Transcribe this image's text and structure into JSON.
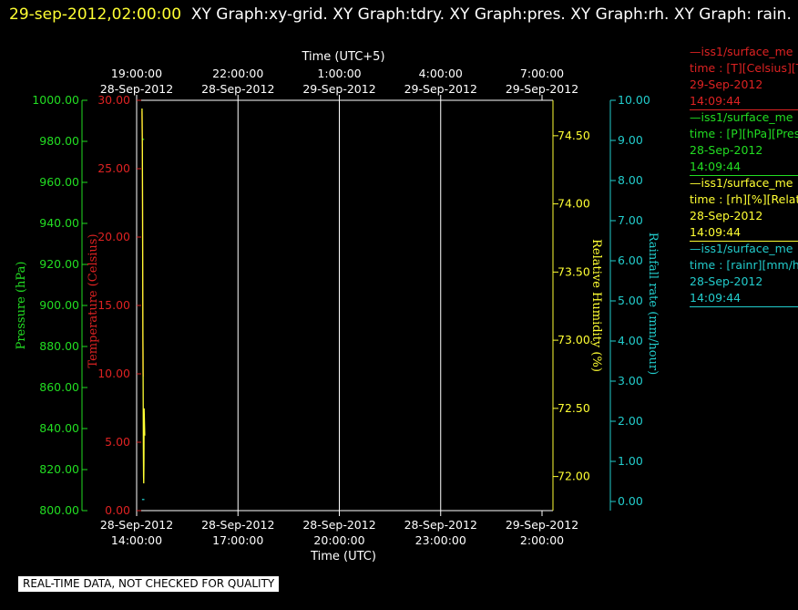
{
  "header": {
    "timestamp": "29-sep-2012,02:00:00",
    "title": "XY Graph:xy-grid.  XY Graph:tdry.  XY Graph:pres.  XY Graph:rh.  XY Graph: rain."
  },
  "colors": {
    "background": "#000000",
    "pressure": "#22dd22",
    "temperature": "#dd2222",
    "humidity": "#ffff33",
    "rain": "#22cccc",
    "grid": "#ffffff"
  },
  "legend": [
    {
      "line1": "—iss1/surface_me",
      "line2": "time : [T][Celsius][T",
      "line3": "29-Sep-2012",
      "line4": "14:09:44",
      "color": "#dd2222"
    },
    {
      "line1": "—iss1/surface_me",
      "line2": "time : [P][hPa][Pres",
      "line3": "28-Sep-2012",
      "line4": "14:09:44",
      "color": "#22dd22"
    },
    {
      "line1": "—iss1/surface_me",
      "line2": "time : [rh][%][Relati",
      "line3": "28-Sep-2012",
      "line4": "14:09:44",
      "color": "#ffff33"
    },
    {
      "line1": "—iss1/surface_me",
      "line2": "time : [rainr][mm/ho",
      "line3": "28-Sep-2012",
      "line4": "14:09:44",
      "color": "#22cccc"
    }
  ],
  "banner": "REAL-TIME DATA, NOT CHECKED FOR QUALITY",
  "chart_data": {
    "type": "line",
    "top_axis": {
      "title": "Time (UTC+5)",
      "ticks": [
        {
          "time": "19:00:00",
          "date": "28-Sep-2012"
        },
        {
          "time": "22:00:00",
          "date": "28-Sep-2012"
        },
        {
          "time": "1:00:00",
          "date": "29-Sep-2012"
        },
        {
          "time": "4:00:00",
          "date": "29-Sep-2012"
        },
        {
          "time": "7:00:00",
          "date": "29-Sep-2012"
        }
      ]
    },
    "bottom_axis": {
      "title": "Time (UTC)",
      "ticks": [
        {
          "date": "28-Sep-2012",
          "time": "14:00:00"
        },
        {
          "date": "28-Sep-2012",
          "time": "17:00:00"
        },
        {
          "date": "28-Sep-2012",
          "time": "20:00:00"
        },
        {
          "date": "28-Sep-2012",
          "time": "23:00:00"
        },
        {
          "date": "29-Sep-2012",
          "time": "2:00:00"
        }
      ],
      "range_hours": [
        0,
        12
      ]
    },
    "pressure_axis": {
      "label": "Pressure (hPa)",
      "min": 800,
      "max": 1000,
      "ticks": [
        "1000.00",
        "980.00",
        "960.00",
        "940.00",
        "920.00",
        "900.00",
        "880.00",
        "860.00",
        "840.00",
        "820.00",
        "800.00"
      ]
    },
    "temperature_axis": {
      "label": "Temperature (Celsius)",
      "min": 0,
      "max": 30,
      "ticks": [
        "30.00",
        "25.00",
        "20.00",
        "15.00",
        "10.00",
        "5.00",
        "0.00"
      ]
    },
    "humidity_axis": {
      "label": "Relative Humidity (%)",
      "min": 71.75,
      "max": 74.76,
      "ticks": [
        "74.50",
        "74.00",
        "73.50",
        "73.00",
        "72.50",
        "72.00"
      ]
    },
    "rain_axis": {
      "label": "Rainfall rate (mm/hour)",
      "min": 0,
      "max": 10,
      "ticks": [
        "10.00",
        "9.00",
        "8.00",
        "7.00",
        "6.00",
        "5.00",
        "4.00",
        "3.00",
        "2.00",
        "1.00",
        "0.00"
      ]
    },
    "series": [
      {
        "name": "temperature",
        "axis": "temperature",
        "color": "#dd2222",
        "points": [
          [
            0.16,
            29.2
          ],
          [
            0.17,
            26.0
          ],
          [
            0.175,
            22.0
          ],
          [
            0.18,
            17.0
          ],
          [
            0.185,
            12.0
          ],
          [
            0.19,
            10.2
          ],
          [
            0.195,
            9.8
          ]
        ]
      },
      {
        "name": "pressure",
        "axis": "pressure",
        "color": "#22dd22",
        "points": [
          [
            0.16,
            981.0
          ],
          [
            0.18,
            981.0
          ],
          [
            0.22,
            981.0
          ]
        ]
      },
      {
        "name": "humidity",
        "axis": "humidity",
        "color": "#ffff33",
        "points": [
          [
            0.16,
            74.7
          ],
          [
            0.17,
            74.4
          ],
          [
            0.175,
            74.0
          ],
          [
            0.18,
            73.4
          ],
          [
            0.185,
            73.0
          ],
          [
            0.19,
            72.9
          ],
          [
            0.2,
            72.2
          ],
          [
            0.205,
            72.0
          ],
          [
            0.21,
            71.95
          ],
          [
            0.215,
            72.1
          ],
          [
            0.22,
            72.5
          ],
          [
            0.24,
            72.3
          ]
        ]
      },
      {
        "name": "rain",
        "axis": "rain",
        "color": "#22cccc",
        "points": [
          [
            0.16,
            0.05
          ],
          [
            0.2,
            0.05
          ],
          [
            0.23,
            0.05
          ]
        ]
      }
    ]
  }
}
